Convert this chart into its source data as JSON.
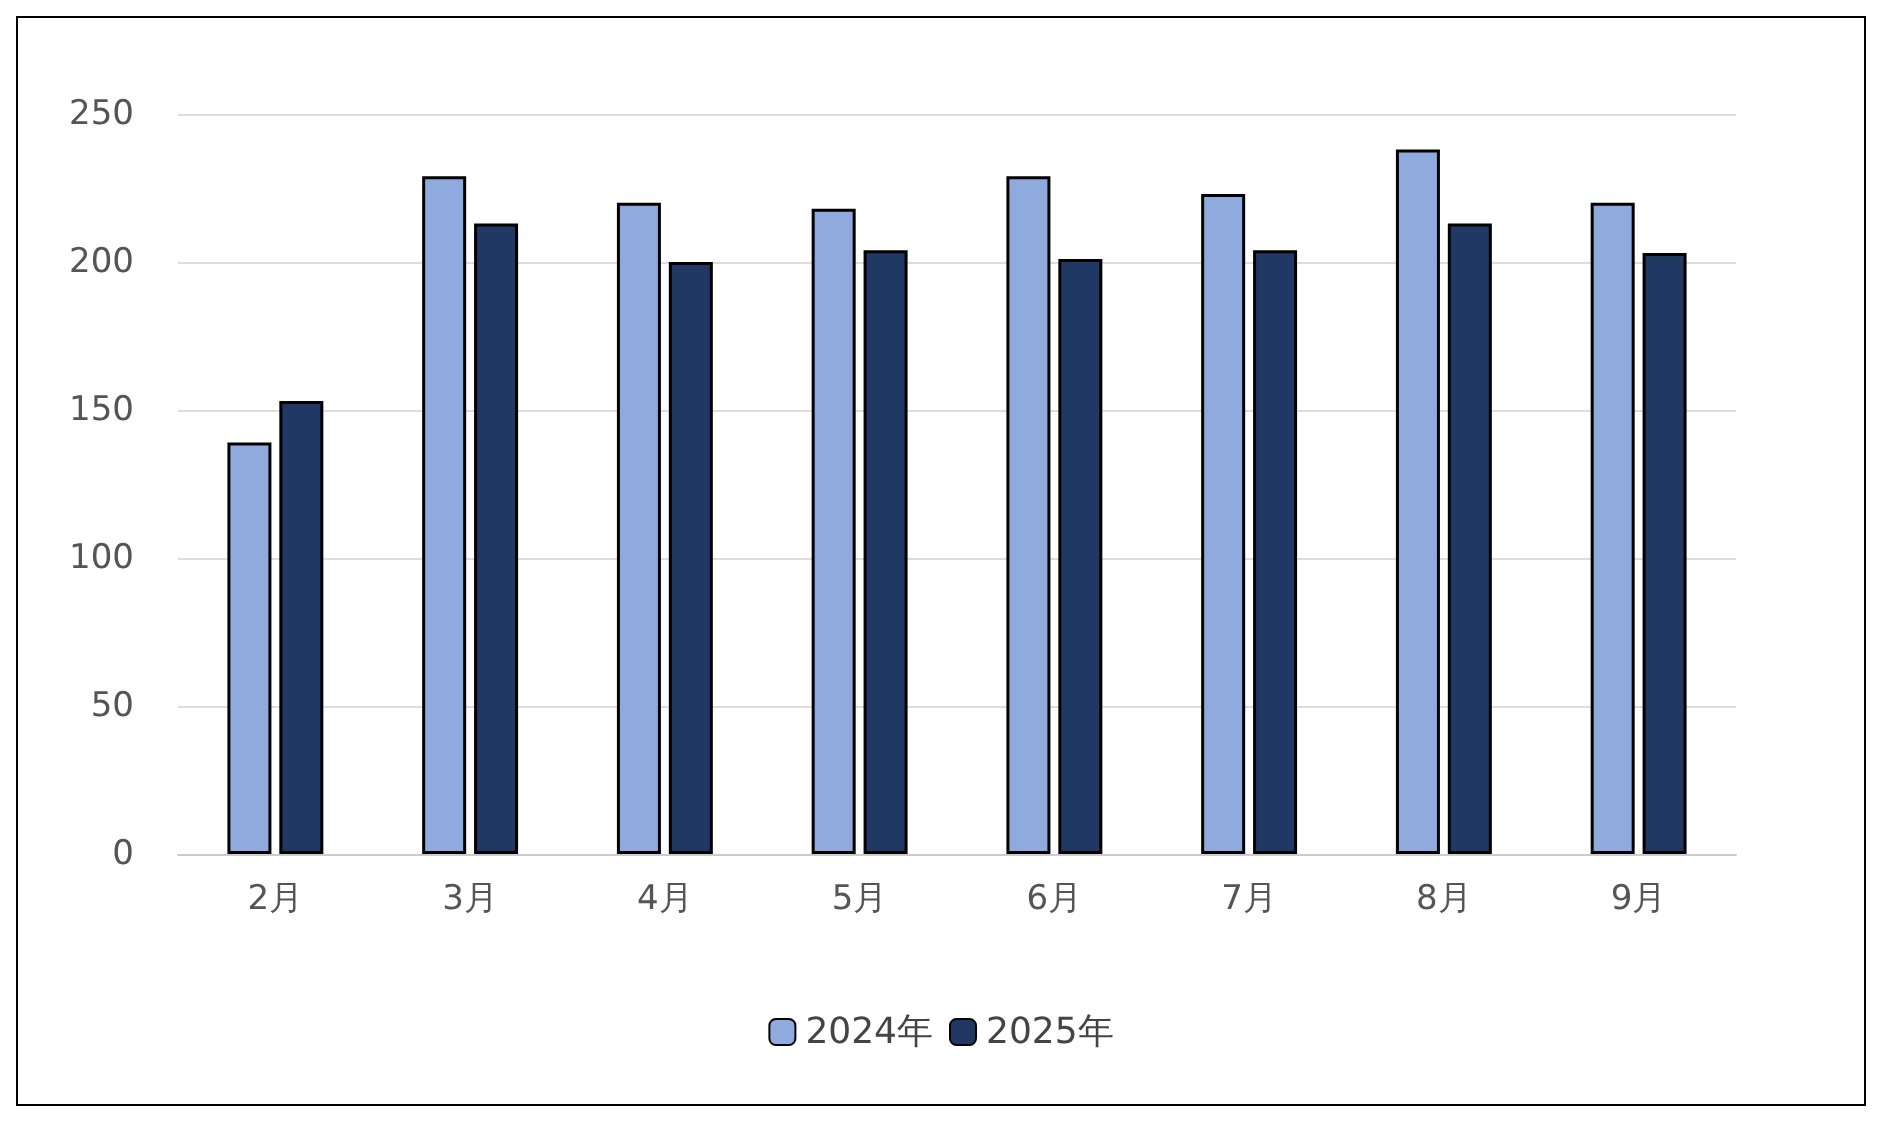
{
  "chart_data": {
    "type": "bar",
    "categories": [
      "2月",
      "3月",
      "4月",
      "5月",
      "6月",
      "7月",
      "8月",
      "9月"
    ],
    "series": [
      {
        "name": "2024年",
        "color": "#8faadc",
        "values": [
          139,
          229,
          220,
          218,
          229,
          223,
          238,
          220
        ]
      },
      {
        "name": "2025年",
        "color": "#1f3864",
        "values": [
          153,
          213,
          200,
          204,
          201,
          204,
          213,
          203
        ]
      }
    ],
    "ylim": [
      0,
      250
    ],
    "yticks": [
      0,
      50,
      100,
      150,
      200,
      250
    ],
    "grid": "y",
    "legend": "bottom"
  }
}
